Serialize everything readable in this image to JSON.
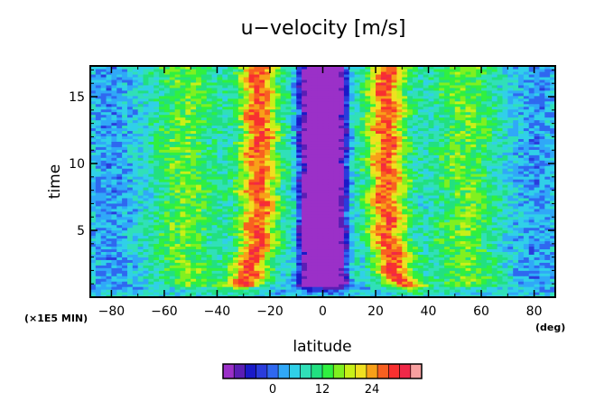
{
  "chart_data": {
    "type": "heatmap",
    "title": "u−velocity [m/s]",
    "xlabel": "latitude",
    "ylabel": "time",
    "x_unit": "(deg)",
    "y_unit": "(×1E5 MIN)",
    "xlim": [
      -88,
      88
    ],
    "ylim": [
      0,
      17.3
    ],
    "x_ticks": [
      -80,
      -60,
      -40,
      -20,
      0,
      20,
      40,
      60,
      80
    ],
    "y_ticks": [
      5,
      10,
      15
    ],
    "colorbar": {
      "tick_labels": [
        "0",
        "12",
        "24"
      ],
      "tick_values": [
        0,
        12,
        24
      ],
      "colors": [
        "#9b30c8",
        "#5a1eb4",
        "#1a1ac8",
        "#2a3cdc",
        "#2f68f0",
        "#30a8f8",
        "#30d0e8",
        "#30e0b8",
        "#22e080",
        "#30f040",
        "#80f020",
        "#c8f018",
        "#f0e020",
        "#f8a018",
        "#f86020",
        "#f83030",
        "#f02848",
        "#f8a0a0"
      ],
      "value_range": [
        -12,
        36
      ]
    },
    "description_bands": [
      {
        "label": "equatorial minimum",
        "lat_center": 0,
        "half_width": 10,
        "value": -8
      },
      {
        "label": "northern jet",
        "lat_center": 24,
        "value": 26
      },
      {
        "label": "southern jet",
        "lat_center": -24,
        "value": 26
      },
      {
        "label": "northern mid-latitude band",
        "lat_center": 54,
        "value": 12
      },
      {
        "label": "southern mid-latitude band",
        "lat_center": -52,
        "value": 12
      }
    ],
    "grid": false
  }
}
